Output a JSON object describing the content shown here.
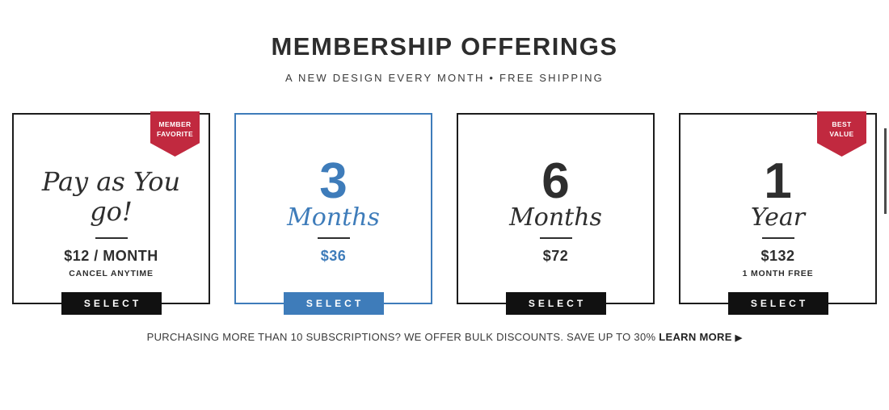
{
  "header": {
    "title": "MEMBERSHIP OFFERINGS",
    "subtitle": "A NEW DESIGN EVERY MONTH • FREE SHIPPING"
  },
  "plans": [
    {
      "name": "pay-as-you-go",
      "badge": {
        "line1": "MEMBER",
        "line2": "FAVORITE"
      },
      "script_title_line1": "Pay as You",
      "script_title_line2": "go!",
      "price": "$12 / MONTH",
      "note": "CANCEL ANYTIME",
      "button_label": "SELECT",
      "highlighted": false
    },
    {
      "name": "3-months",
      "quantity": "3",
      "unit": "Months",
      "price": "$36",
      "button_label": "SELECT",
      "highlighted": true
    },
    {
      "name": "6-months",
      "quantity": "6",
      "unit": "Months",
      "price": "$72",
      "button_label": "SELECT",
      "highlighted": false
    },
    {
      "name": "1-year",
      "badge": {
        "line1": "BEST",
        "line2": "VALUE"
      },
      "quantity": "1",
      "unit": "Year",
      "price": "$132",
      "note": "1 MONTH FREE",
      "button_label": "SELECT",
      "highlighted": false
    }
  ],
  "footer": {
    "text": "PURCHASING MORE THAN 10 SUBSCRIPTIONS? WE OFFER BULK DISCOUNTS. SAVE UP TO 30%",
    "link_label": "LEARN MORE",
    "link_arrow": "▶"
  },
  "colors": {
    "accent_blue": "#3e7cba",
    "badge_red": "#c1293f",
    "text_dark": "#2e2e2e",
    "button_black": "#111111"
  }
}
